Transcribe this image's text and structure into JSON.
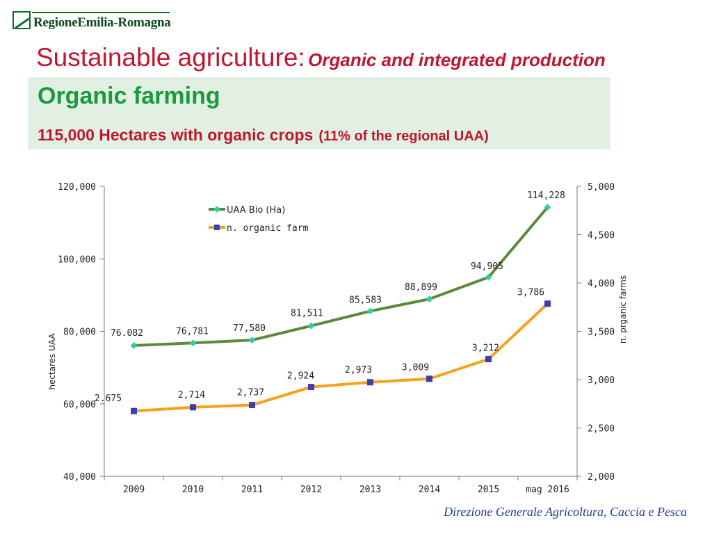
{
  "header": {
    "logo_text": "RegioneEmilia-Romagna",
    "title_main": "Sustainable agriculture:",
    "title_sub": "Organic and integrated production"
  },
  "box": {
    "title": "Organic farming",
    "stat_main": "115,000 Hectares with organic crops",
    "stat_note": "(11% of the regional UAA)"
  },
  "footer": {
    "text": "Direzione Generale Agricoltura, Caccia e Pesca"
  },
  "colors": {
    "title_red": "#c0162e",
    "green_text": "#1a9a3e",
    "box_bg": "#e2f0e3",
    "uaa_line": "#5b8a3a",
    "uaa_marker": "#2ecfa0",
    "farm_line": "#f7a11a",
    "farm_marker": "#3b3fb0"
  },
  "chart_data": {
    "type": "line",
    "categories": [
      "2009",
      "2010",
      "2011",
      "2012",
      "2013",
      "2014",
      "2015",
      "mag 2016"
    ],
    "series": [
      {
        "name": "UAA Bio (Ha)",
        "axis": "left",
        "values": [
          76082,
          76781,
          77580,
          81511,
          85583,
          88899,
          94905,
          114228
        ],
        "labels": [
          "76.082",
          "76,781",
          "77,580",
          "81,511",
          "85,583",
          "88,899",
          "94,905",
          "114,228"
        ]
      },
      {
        "name": "n. organic farm",
        "axis": "right",
        "values": [
          2675,
          2714,
          2737,
          2924,
          2973,
          3009,
          3212,
          3786
        ],
        "labels": [
          "2.675",
          "2,714",
          "2,737",
          "2,924",
          "2,973",
          "3,009",
          "3,212",
          "3,786"
        ]
      }
    ],
    "ylabel": "hectares UAA",
    "y2label": "n. prganic farms",
    "ylim": [
      40000,
      120000
    ],
    "y_ticks": [
      "40,000",
      "60,000",
      "80,000",
      "100,000",
      "120,000"
    ],
    "y2lim": [
      2000,
      5000
    ],
    "y2_ticks": [
      "2,000",
      "2,500",
      "3,000",
      "3,500",
      "4,000",
      "4,500",
      "5,000"
    ],
    "grid": false,
    "legend": "top-center"
  }
}
